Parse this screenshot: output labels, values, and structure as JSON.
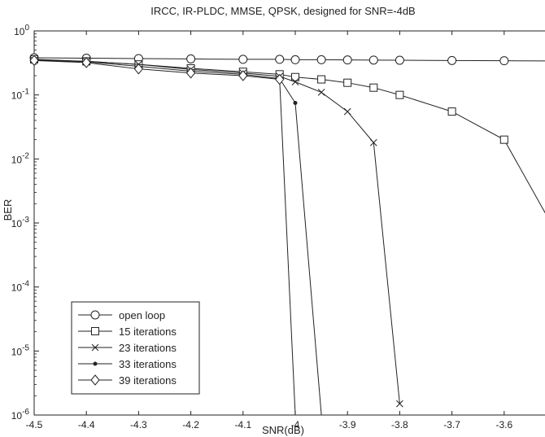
{
  "chart_data": {
    "type": "line",
    "title": "IRCC, IR-PLDC, MMSE, QPSK, designed for SNR=-4dB",
    "xlabel": "SNR(dB)",
    "ylabel": "BER",
    "xlim": [
      -4.5,
      -3.5
    ],
    "ylim": [
      1e-06,
      1
    ],
    "yscale": "log",
    "grid": false,
    "legend_position": "bottom-left",
    "x_ticks": [
      -4.5,
      -4.4,
      -4.3,
      -4.2,
      -4.1,
      -4,
      -3.9,
      -3.8,
      -3.7,
      -3.6,
      -3.5
    ],
    "x_tick_labels": [
      "-4.5",
      "-4.4",
      "-4.3",
      "-4.2",
      "-4.1",
      "-4",
      "-3.9",
      "-3.8",
      "-3.7",
      "-3.6",
      "-3.5"
    ],
    "y_ticks": [
      {
        "value": 1,
        "base": "10",
        "exp": "0"
      },
      {
        "value": 0.1,
        "base": "10",
        "exp": "-1"
      },
      {
        "value": 0.01,
        "base": "10",
        "exp": "-2"
      },
      {
        "value": 0.001,
        "base": "10",
        "exp": "-3"
      },
      {
        "value": 0.0001,
        "base": "10",
        "exp": "-4"
      },
      {
        "value": 1e-05,
        "base": "10",
        "exp": "-5"
      },
      {
        "value": 1e-06,
        "base": "10",
        "exp": "-6"
      }
    ],
    "series": [
      {
        "name": "open loop",
        "marker": "circle",
        "x": [
          -4.5,
          -4.4,
          -4.3,
          -4.2,
          -4.1,
          -4.03,
          -4,
          -3.95,
          -3.9,
          -3.85,
          -3.8,
          -3.7,
          -3.6,
          -3.5
        ],
        "y": [
          0.38,
          0.375,
          0.37,
          0.365,
          0.36,
          0.36,
          0.355,
          0.355,
          0.352,
          0.35,
          0.348,
          0.345,
          0.342,
          0.34
        ]
      },
      {
        "name": "15 iterations",
        "marker": "square",
        "x": [
          -4.5,
          -4.4,
          -4.3,
          -4.2,
          -4.1,
          -4.03,
          -4,
          -3.95,
          -3.9,
          -3.85,
          -3.8,
          -3.7,
          -3.6,
          -3.5
        ],
        "y": [
          0.36,
          0.335,
          0.3,
          0.26,
          0.23,
          0.21,
          0.19,
          0.175,
          0.155,
          0.13,
          0.1,
          0.055,
          0.02,
          0.0007
        ]
      },
      {
        "name": "23 iterations",
        "marker": "x",
        "x": [
          -4.5,
          -4.4,
          -4.3,
          -4.2,
          -4.1,
          -4.03,
          -4,
          -3.95,
          -3.9,
          -3.85,
          -3.8
        ],
        "y": [
          0.35,
          0.335,
          0.3,
          0.25,
          0.22,
          0.195,
          0.16,
          0.11,
          0.055,
          0.018,
          1.5e-06
        ]
      },
      {
        "name": "33 iterations",
        "marker": "dot",
        "x": [
          -4.5,
          -4.4,
          -4.3,
          -4.2,
          -4.1,
          -4.03,
          -4,
          -3.95
        ],
        "y": [
          0.35,
          0.33,
          0.28,
          0.235,
          0.21,
          0.18,
          0.075,
          1e-06
        ]
      },
      {
        "name": "39 iterations",
        "marker": "diamond",
        "x": [
          -4.5,
          -4.4,
          -4.3,
          -4.2,
          -4.1,
          -4.03,
          -4
        ],
        "y": [
          0.345,
          0.32,
          0.255,
          0.22,
          0.2,
          0.175,
          1e-06
        ]
      }
    ]
  }
}
